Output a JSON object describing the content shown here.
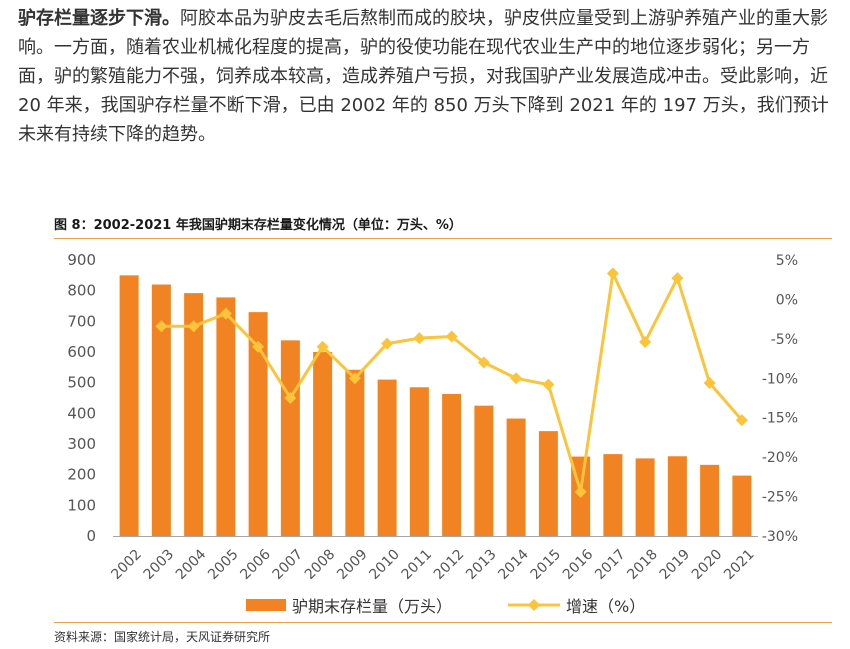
{
  "intro": {
    "lead": "驴存栏量逐步下滑。",
    "body": "阿胶本品为驴皮去毛后熬制而成的胶块，驴皮供应量受到上游驴养殖产业的重大影响。一方面，随着农业机械化程度的提高，驴的役使功能在现代农业生产中的地位逐步弱化；另一方面，驴的繁殖能力不强，饲养成本较高，造成养殖户亏损，对我国驴产业发展造成冲击。受此影响，近 20 年来，我国驴存栏量不断下滑，已由 2002 年的 850 万头下降到 2021 年的 197 万头，我们预计未来有持续下降的趋势。"
  },
  "figure": {
    "title": "图 8：2002-2021 年我国驴期末存栏量变化情况（单位：万头、%）",
    "source": "资料来源：国家统计局，天风证券研究所"
  },
  "chart_data": {
    "type": "bar",
    "categories": [
      "2002",
      "2003",
      "2004",
      "2005",
      "2006",
      "2007",
      "2008",
      "2009",
      "2010",
      "2011",
      "2012",
      "2013",
      "2014",
      "2015",
      "2016",
      "2017",
      "2018",
      "2019",
      "2020",
      "2021"
    ],
    "series": [
      {
        "name": "驴期末存栏量（万头）",
        "type": "bar",
        "axis": "left",
        "color": "#f28322",
        "values": [
          850,
          820,
          792,
          778,
          730,
          638,
          600,
          542,
          510,
          485,
          463,
          425,
          383,
          342,
          259,
          267,
          253,
          260,
          232,
          197
        ]
      },
      {
        "name": "增速（%）",
        "type": "line",
        "axis": "right",
        "color": "#fbc43a",
        "values": [
          null,
          -3.4,
          -3.4,
          -1.8,
          -6.0,
          -12.5,
          -6.0,
          -10.0,
          -5.6,
          -4.9,
          -4.7,
          -8.0,
          -10.0,
          -10.8,
          -24.4,
          3.3,
          -5.4,
          2.7,
          -10.6,
          -15.3
        ]
      }
    ],
    "y_left": {
      "min": 0,
      "max": 900,
      "ticks": [
        "0",
        "100",
        "200",
        "300",
        "400",
        "500",
        "600",
        "700",
        "800",
        "900"
      ]
    },
    "y_right": {
      "min": -30,
      "max": 5,
      "ticks": [
        "-30%",
        "-25%",
        "-20%",
        "-15%",
        "-10%",
        "-5%",
        "0%",
        "5%"
      ]
    },
    "grid": false,
    "legend_position": "bottom"
  }
}
